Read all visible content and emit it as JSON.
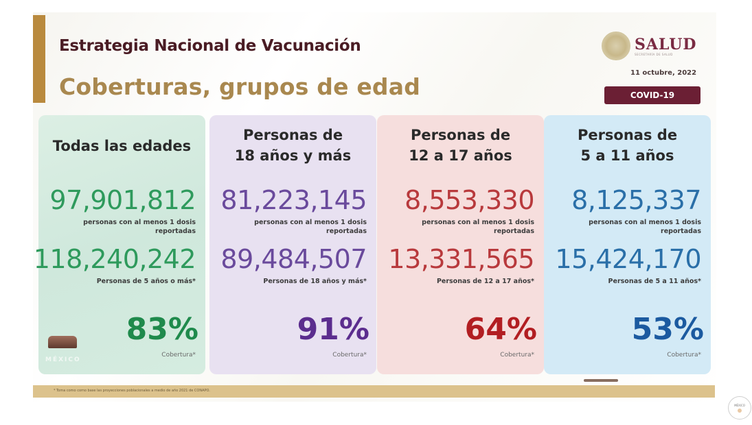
{
  "header": {
    "title": "Estrategia Nacional de Vacunación",
    "subtitle": "Coberturas, grupos de edad",
    "logo": {
      "name": "SALUD",
      "tagline": "SECRETARÍA DE SALUD"
    },
    "date": "11 octubre, 2022",
    "badge": "COVID-19"
  },
  "panels": [
    {
      "heading_line1": "Todas las edades",
      "heading_line2": "",
      "vaccinated": "97,901,812",
      "vaccinated_label_1": "personas con al menos 1 dosis",
      "vaccinated_label_2": "reportadas",
      "population": "118,240,242",
      "population_label": "Personas de 5 años o más*",
      "coverage": "83%",
      "coverage_label": "Cobertura*",
      "color": "#2e9a5c",
      "coverage_color": "#1f8a4c"
    },
    {
      "heading_line1": "Personas de",
      "heading_line2": "18 años y más",
      "vaccinated": "81,223,145",
      "vaccinated_label_1": "personas con al menos 1 dosis",
      "vaccinated_label_2": "reportadas",
      "population": "89,484,507",
      "population_label": "Personas de 18 años y más*",
      "coverage": "91%",
      "coverage_label": "Cobertura*",
      "color": "#6a4a9c",
      "coverage_color": "#5b2d8e"
    },
    {
      "heading_line1": "Personas de",
      "heading_line2": "12 a 17 años",
      "vaccinated": "8,553,330",
      "vaccinated_label_1": "personas con al menos 1 dosis",
      "vaccinated_label_2": "reportadas",
      "population": "13,331,565",
      "population_label": "Personas de 12 a 17 años*",
      "coverage": "64%",
      "coverage_label": "Cobertura*",
      "color": "#b8393c",
      "coverage_color": "#b21e22"
    },
    {
      "heading_line1": "Personas de",
      "heading_line2": "5 a 11 años",
      "vaccinated": "8,125,337",
      "vaccinated_label_1": "personas con al menos 1 dosis",
      "vaccinated_label_2": "reportadas",
      "population": "15,424,170",
      "population_label": "Personas de 5 a 11 años*",
      "coverage": "53%",
      "coverage_label": "Cobertura*",
      "color": "#2a6fa8",
      "coverage_color": "#1b5aa0"
    }
  ],
  "left_logo": {
    "text": "MÉXICO"
  },
  "footer": {
    "note": "* Toma como como base las proyecciones poblacionales a medio de año 2021 de CONAPO."
  },
  "corner_badge": {
    "text": "MÉXICO"
  }
}
